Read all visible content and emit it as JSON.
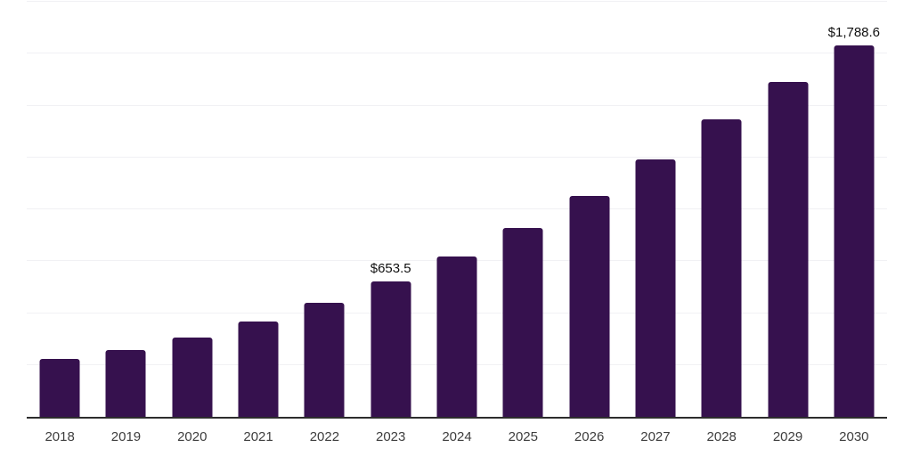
{
  "chart_data": {
    "type": "bar",
    "title": "",
    "xlabel": "",
    "ylabel": "",
    "categories": [
      "2018",
      "2019",
      "2020",
      "2021",
      "2022",
      "2023",
      "2024",
      "2025",
      "2026",
      "2027",
      "2028",
      "2029",
      "2030"
    ],
    "values": [
      280,
      323,
      383,
      460,
      550,
      653.5,
      773,
      910,
      1064,
      1240,
      1432,
      1612,
      1788.6
    ],
    "value_labels": [
      "",
      "",
      "",
      "",
      "",
      "$653.5",
      "",
      "",
      "",
      "",
      "",
      "",
      "$1,788.6"
    ],
    "ylim": [
      0,
      2000
    ],
    "grid_step": 250,
    "grid": "horizontal-only",
    "y_tick_labels_shown": false,
    "legend_position": "none",
    "colors": {
      "bar": "#36114E",
      "axis_line": "#2D2D2D",
      "gridline": "#F1F1F4",
      "tick_label": "#3D3D3D",
      "value_label": "#101010",
      "background": "#FFFFFF"
    }
  }
}
